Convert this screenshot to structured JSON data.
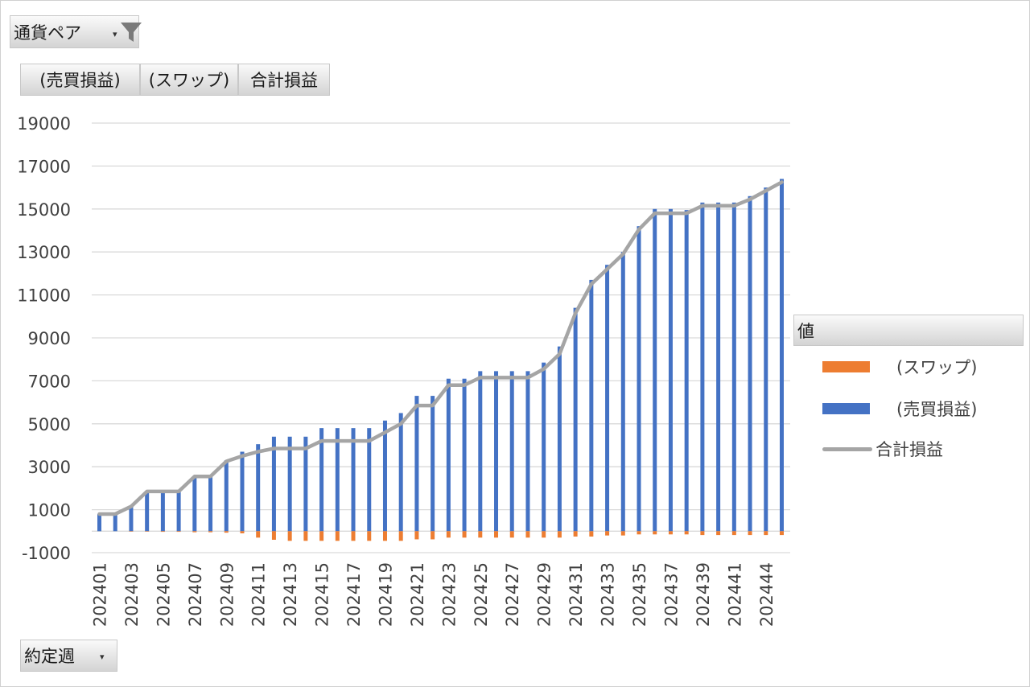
{
  "filter_field": {
    "label": "通貨ペア",
    "dropdown": "▾"
  },
  "value_fields": [
    "(売買損益)",
    "(スワップ)",
    "合計損益"
  ],
  "axis_field": {
    "label": "約定週",
    "dropdown": "▾"
  },
  "legend": {
    "title": "値",
    "items": [
      {
        "label": "(スワップ)",
        "color": "#ed7d31"
      },
      {
        "label": "(売買損益)",
        "color": "#4472c4"
      },
      {
        "label": "合計損益",
        "color": "#a5a5a5"
      }
    ]
  },
  "chart_data": {
    "type": "bar",
    "stacked": true,
    "ylim": [
      -1000,
      19000
    ],
    "yticks": [
      -1000,
      1000,
      3000,
      5000,
      7000,
      9000,
      11000,
      13000,
      15000,
      17000,
      19000
    ],
    "grid": true,
    "legend_position": "right",
    "categories": [
      "202401",
      "202402",
      "202403",
      "202404",
      "202405",
      "202406",
      "202407",
      "202408",
      "202409",
      "202410",
      "202411",
      "202412",
      "202413",
      "202414",
      "202415",
      "202416",
      "202417",
      "202418",
      "202419",
      "202420",
      "202421",
      "202422",
      "202423",
      "202424",
      "202425",
      "202426",
      "202427",
      "202428",
      "202429",
      "202430",
      "202431",
      "202432",
      "202433",
      "202434",
      "202435",
      "202436",
      "202437",
      "202438",
      "202439",
      "202440",
      "202441",
      "202442",
      "202444",
      "202445"
    ],
    "xtick_labels": [
      "202401",
      "202403",
      "202405",
      "202407",
      "202409",
      "202411",
      "202413",
      "202415",
      "202417",
      "202419",
      "202421",
      "202423",
      "202425",
      "202427",
      "202429",
      "202431",
      "202433",
      "202435",
      "202437",
      "202439",
      "202441",
      "202444"
    ],
    "series": [
      {
        "name": "(スワップ)",
        "type": "bar",
        "values": [
          0,
          0,
          -20,
          -20,
          -30,
          -30,
          -50,
          -50,
          -70,
          -100,
          -300,
          -400,
          -450,
          -450,
          -450,
          -450,
          -450,
          -450,
          -450,
          -450,
          -380,
          -380,
          -300,
          -300,
          -300,
          -300,
          -300,
          -300,
          -300,
          -300,
          -250,
          -250,
          -200,
          -200,
          -150,
          -150,
          -150,
          -150,
          -180,
          -180,
          -180,
          -180,
          -180,
          -180
        ]
      },
      {
        "name": "(売買損益)",
        "type": "bar",
        "values": [
          800,
          800,
          1150,
          1850,
          1850,
          1850,
          2550,
          2550,
          3300,
          3700,
          4050,
          4400,
          4400,
          4400,
          4800,
          4800,
          4800,
          4800,
          5150,
          5500,
          6300,
          6300,
          7100,
          7100,
          7450,
          7450,
          7450,
          7450,
          7850,
          8600,
          10400,
          11700,
          12400,
          13000,
          14200,
          15000,
          15000,
          14950,
          15300,
          15300,
          15300,
          15600,
          16000,
          16400
        ]
      },
      {
        "name": "合計損益",
        "type": "line",
        "values": [
          800,
          800,
          1150,
          1850,
          1850,
          1850,
          2550,
          2550,
          3250,
          3500,
          3700,
          3850,
          3850,
          3850,
          4200,
          4200,
          4200,
          4200,
          4600,
          5000,
          5850,
          5850,
          6800,
          6800,
          7150,
          7150,
          7150,
          7150,
          7550,
          8250,
          10150,
          11500,
          12200,
          12900,
          14050,
          14800,
          14800,
          14800,
          15150,
          15150,
          15150,
          15450,
          15850,
          16250
        ]
      }
    ]
  }
}
